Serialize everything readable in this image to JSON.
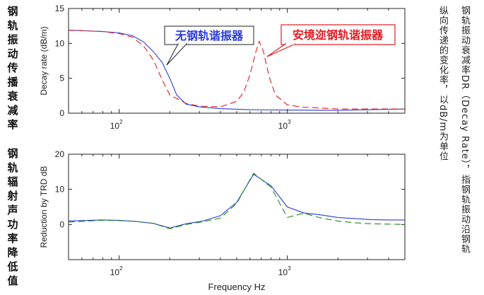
{
  "left_labels": {
    "top": "钢轨振动传播衰减率",
    "bottom": "钢轨辐射声功率降低值"
  },
  "right_note": {
    "col1": "钢轨振动衰减率DR（Decay Rate），指钢轨振动沿钢轨",
    "col2": "纵向传递的变化率，以dB/m为单位"
  },
  "colors": {
    "blue": "#2a3bd6",
    "red": "#e21b22",
    "green": "#1f8a1f"
  },
  "chart_data": [
    {
      "type": "line",
      "xscale": "log",
      "xlim": [
        50,
        5000
      ],
      "ylim": [
        0,
        15
      ],
      "yticks": [
        0,
        5,
        10,
        15
      ],
      "xticks": [
        100,
        1000
      ],
      "xtick_labels": [
        {
          "base": "10",
          "exp": "2"
        },
        {
          "base": "10",
          "exp": "3"
        }
      ],
      "ylabel": "Decay rate (dB/m)",
      "xlabel": "",
      "series": [
        {
          "name": "无钢轨谐振器",
          "color": "#2a3bd6",
          "dash": "solid",
          "x": [
            50,
            80,
            100,
            120,
            140,
            160,
            180,
            200,
            220,
            250,
            300,
            400,
            600,
            1000,
            2000,
            5000
          ],
          "y": [
            11.9,
            11.7,
            11.5,
            11.1,
            10.2,
            8.8,
            7.3,
            5.0,
            2.6,
            1.3,
            0.9,
            0.65,
            0.5,
            0.45,
            0.42,
            0.6
          ]
        },
        {
          "name": "安境迩钢轨谐振器",
          "color": "#e21b22",
          "dash": "dashed",
          "x": [
            50,
            80,
            100,
            120,
            140,
            160,
            180,
            200,
            250,
            300,
            400,
            500,
            550,
            600,
            650,
            680,
            720,
            780,
            850,
            1000,
            1200,
            2000,
            5000
          ],
          "y": [
            11.9,
            11.7,
            11.4,
            10.9,
            9.6,
            7.6,
            4.8,
            2.6,
            1.4,
            1.0,
            0.9,
            1.7,
            3.0,
            5.5,
            8.8,
            10.3,
            8.9,
            5.2,
            2.6,
            1.2,
            0.9,
            0.6,
            0.6
          ]
        }
      ],
      "annotations": [
        {
          "text": "无钢轨谐振器",
          "color": "#2a3bd6"
        },
        {
          "text": "安境迩钢轨谐振器",
          "color": "#e21b22"
        }
      ]
    },
    {
      "type": "line",
      "xscale": "log",
      "xlim": [
        50,
        5000
      ],
      "ylim": [
        -10,
        20
      ],
      "yticks": [
        0,
        10,
        20
      ],
      "xticks": [
        100,
        1000
      ],
      "xtick_labels": [
        {
          "base": "10",
          "exp": "2"
        },
        {
          "base": "10",
          "exp": "3"
        }
      ],
      "ylabel": "Reduction by TRD dB",
      "xlabel": "Frequency Hz",
      "series": [
        {
          "color": "#2a3bd6",
          "dash": "solid",
          "x": [
            50,
            80,
            100,
            125,
            160,
            200,
            250,
            315,
            400,
            500,
            630,
            800,
            1000,
            1250,
            1600,
            2000,
            2500,
            3150,
            4000,
            5000
          ],
          "y": [
            1.0,
            1.3,
            1.2,
            0.9,
            0.3,
            -1.0,
            0.2,
            1.0,
            2.5,
            6.3,
            14.3,
            11.0,
            5.0,
            3.3,
            2.7,
            2.0,
            1.7,
            1.4,
            1.3,
            1.3
          ]
        },
        {
          "color": "#1f8a1f",
          "dash": "dashed",
          "x": [
            50,
            80,
            100,
            125,
            160,
            200,
            250,
            315,
            400,
            500,
            630,
            800,
            1000,
            1250,
            1600,
            2000,
            2500,
            3150,
            4000,
            5000
          ],
          "y": [
            0.7,
            1.2,
            1.1,
            0.9,
            0.3,
            -1.2,
            0.0,
            0.8,
            1.8,
            6.0,
            14.6,
            10.6,
            2.0,
            3.2,
            1.8,
            1.0,
            0.5,
            0.2,
            0.1,
            0.0
          ]
        }
      ],
      "annotations": []
    }
  ]
}
